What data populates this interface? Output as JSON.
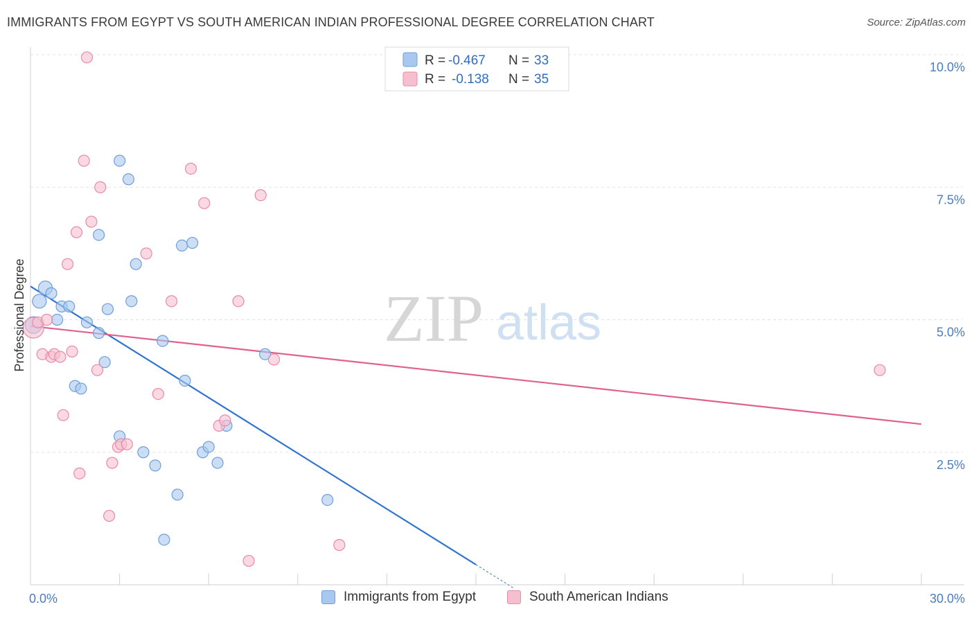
{
  "title": "IMMIGRANTS FROM EGYPT VS SOUTH AMERICAN INDIAN PROFESSIONAL DEGREE CORRELATION CHART",
  "source": "Source: ZipAtlas.com",
  "watermark": {
    "zip": "ZIP",
    "atlas": "atlas"
  },
  "colors": {
    "blue_fill": "#a9c8ef",
    "blue_stroke": "#6e9fd8",
    "blue_line": "#2f74d0",
    "pink_fill": "#f6bfd0",
    "pink_stroke": "#e88aa8",
    "pink_line": "#e0608e",
    "axis_text": "#4a7cc0",
    "grid": "#e3e3e3"
  },
  "legend": {
    "rows": [
      {
        "r_label": "R =",
        "r_value": "-0.467",
        "n_label": "N =",
        "n_value": "33"
      },
      {
        "r_label": "R =",
        "r_value": "-0.138",
        "n_label": "N =",
        "n_value": "35"
      }
    ]
  },
  "bottom_legend": [
    "Immigrants from Egypt",
    "South American Indians"
  ],
  "chart_data": {
    "type": "scatter",
    "title": "IMMIGRANTS FROM EGYPT VS SOUTH AMERICAN INDIAN PROFESSIONAL DEGREE CORRELATION CHART",
    "xlabel": "",
    "ylabel": "Professional Degree",
    "xlim": [
      0,
      30
    ],
    "ylim": [
      0,
      10
    ],
    "x_tick_labels": [
      "0.0%",
      "30.0%"
    ],
    "y_ticks": [
      2.5,
      5.0,
      7.5,
      10.0
    ],
    "y_tick_labels": [
      "2.5%",
      "5.0%",
      "7.5%",
      "10.0%"
    ],
    "grid": true,
    "series": [
      {
        "name": "Immigrants from Egypt",
        "color": "blue",
        "r": -0.467,
        "n": 33,
        "trend": {
          "x0": 0.0,
          "y0": 5.63,
          "x1": 15.0,
          "y1": 0.38,
          "dash_to_x": 16.3
        },
        "points": [
          {
            "x": 0.1,
            "y": 4.9,
            "s": "l"
          },
          {
            "x": 0.3,
            "y": 5.35,
            "s": "m"
          },
          {
            "x": 0.5,
            "y": 5.6,
            "s": "m"
          },
          {
            "x": 0.7,
            "y": 5.5,
            "s": "s"
          },
          {
            "x": 0.9,
            "y": 5.0,
            "s": "s"
          },
          {
            "x": 1.05,
            "y": 5.25,
            "s": "s"
          },
          {
            "x": 1.3,
            "y": 5.25,
            "s": "s"
          },
          {
            "x": 1.9,
            "y": 4.95,
            "s": "s"
          },
          {
            "x": 2.3,
            "y": 6.6,
            "s": "s"
          },
          {
            "x": 2.3,
            "y": 4.75,
            "s": "s"
          },
          {
            "x": 2.5,
            "y": 4.2,
            "s": "s"
          },
          {
            "x": 1.5,
            "y": 3.75,
            "s": "s"
          },
          {
            "x": 1.7,
            "y": 3.7,
            "s": "s"
          },
          {
            "x": 2.6,
            "y": 5.2,
            "s": "s"
          },
          {
            "x": 3.0,
            "y": 8.0,
            "s": "s"
          },
          {
            "x": 3.3,
            "y": 7.65,
            "s": "s"
          },
          {
            "x": 3.55,
            "y": 6.05,
            "s": "s"
          },
          {
            "x": 3.4,
            "y": 5.35,
            "s": "s"
          },
          {
            "x": 3.0,
            "y": 2.8,
            "s": "s"
          },
          {
            "x": 3.8,
            "y": 2.5,
            "s": "s"
          },
          {
            "x": 4.2,
            "y": 2.25,
            "s": "s"
          },
          {
            "x": 4.45,
            "y": 4.6,
            "s": "s"
          },
          {
            "x": 4.5,
            "y": 0.85,
            "s": "s"
          },
          {
            "x": 4.95,
            "y": 1.7,
            "s": "s"
          },
          {
            "x": 5.1,
            "y": 6.4,
            "s": "s"
          },
          {
            "x": 5.45,
            "y": 6.45,
            "s": "s"
          },
          {
            "x": 5.2,
            "y": 3.85,
            "s": "s"
          },
          {
            "x": 5.8,
            "y": 2.5,
            "s": "s"
          },
          {
            "x": 6.0,
            "y": 2.6,
            "s": "s"
          },
          {
            "x": 6.3,
            "y": 2.3,
            "s": "s"
          },
          {
            "x": 6.6,
            "y": 3.0,
            "s": "s"
          },
          {
            "x": 7.9,
            "y": 4.35,
            "s": "s"
          },
          {
            "x": 10.0,
            "y": 1.6,
            "s": "s"
          }
        ]
      },
      {
        "name": "South American Indians",
        "color": "pink",
        "r": -0.138,
        "n": 35,
        "trend": {
          "x0": 0.0,
          "y0": 4.88,
          "x1": 30.0,
          "y1": 3.03
        },
        "points": [
          {
            "x": 0.1,
            "y": 4.85,
            "s": "xl"
          },
          {
            "x": 0.25,
            "y": 4.95,
            "s": "s"
          },
          {
            "x": 0.4,
            "y": 4.35,
            "s": "s"
          },
          {
            "x": 0.55,
            "y": 5.0,
            "s": "s"
          },
          {
            "x": 0.7,
            "y": 4.3,
            "s": "s"
          },
          {
            "x": 0.8,
            "y": 4.35,
            "s": "s"
          },
          {
            "x": 1.0,
            "y": 4.3,
            "s": "s"
          },
          {
            "x": 1.1,
            "y": 3.2,
            "s": "s"
          },
          {
            "x": 1.25,
            "y": 6.05,
            "s": "s"
          },
          {
            "x": 1.4,
            "y": 4.4,
            "s": "s"
          },
          {
            "x": 1.55,
            "y": 6.65,
            "s": "s"
          },
          {
            "x": 1.65,
            "y": 2.1,
            "s": "s"
          },
          {
            "x": 1.8,
            "y": 8.0,
            "s": "s"
          },
          {
            "x": 1.9,
            "y": 9.95,
            "s": "s"
          },
          {
            "x": 2.05,
            "y": 6.85,
            "s": "s"
          },
          {
            "x": 2.25,
            "y": 4.05,
            "s": "s"
          },
          {
            "x": 2.35,
            "y": 7.5,
            "s": "s"
          },
          {
            "x": 2.65,
            "y": 1.3,
            "s": "s"
          },
          {
            "x": 2.75,
            "y": 2.3,
            "s": "s"
          },
          {
            "x": 2.95,
            "y": 2.6,
            "s": "s"
          },
          {
            "x": 3.05,
            "y": 2.65,
            "s": "s"
          },
          {
            "x": 3.25,
            "y": 2.65,
            "s": "s"
          },
          {
            "x": 3.9,
            "y": 6.25,
            "s": "s"
          },
          {
            "x": 4.3,
            "y": 3.6,
            "s": "s"
          },
          {
            "x": 4.75,
            "y": 5.35,
            "s": "s"
          },
          {
            "x": 5.4,
            "y": 7.85,
            "s": "s"
          },
          {
            "x": 5.85,
            "y": 7.2,
            "s": "s"
          },
          {
            "x": 6.35,
            "y": 3.0,
            "s": "s"
          },
          {
            "x": 6.55,
            "y": 3.1,
            "s": "s"
          },
          {
            "x": 7.0,
            "y": 5.35,
            "s": "s"
          },
          {
            "x": 7.35,
            "y": 0.45,
            "s": "s"
          },
          {
            "x": 7.75,
            "y": 7.35,
            "s": "s"
          },
          {
            "x": 8.2,
            "y": 4.25,
            "s": "s"
          },
          {
            "x": 10.4,
            "y": 0.75,
            "s": "s"
          },
          {
            "x": 28.6,
            "y": 4.05,
            "s": "s"
          }
        ]
      }
    ]
  }
}
